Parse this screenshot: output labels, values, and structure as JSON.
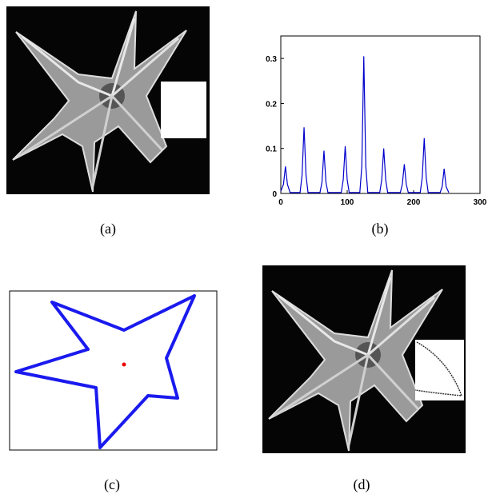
{
  "captions": [
    "(a)",
    "(b)",
    "(c)",
    "(d)"
  ],
  "chart_data": {
    "type": "line",
    "x": [
      0,
      4,
      7,
      10,
      14,
      29,
      32,
      35,
      38,
      41,
      59,
      62,
      65,
      68,
      71,
      91,
      94,
      97,
      100,
      103,
      119,
      122,
      125,
      128,
      131,
      149,
      152,
      155,
      158,
      161,
      180,
      183,
      186,
      189,
      192,
      210,
      213,
      216,
      219,
      222,
      240,
      243,
      246,
      249,
      253
    ],
    "series": [
      {
        "color": "#0000cc",
        "values": [
          0.005,
          0.02,
          0.06,
          0.02,
          0.002,
          0.002,
          0.04,
          0.147,
          0.04,
          0.002,
          0.002,
          0.025,
          0.095,
          0.025,
          0.002,
          0.002,
          0.03,
          0.105,
          0.03,
          0.002,
          0.002,
          0.06,
          0.305,
          0.06,
          0.002,
          0.002,
          0.03,
          0.1,
          0.03,
          0.002,
          0.002,
          0.02,
          0.065,
          0.02,
          0.002,
          0.002,
          0.035,
          0.123,
          0.035,
          0.002,
          0.002,
          0.015,
          0.055,
          0.015,
          0.002
        ]
      }
    ],
    "xlim": [
      0,
      300
    ],
    "ylim": [
      0,
      0.35
    ],
    "xticks": [
      0,
      100,
      200,
      300
    ],
    "yticks": [
      0,
      0.1,
      0.2,
      0.3
    ]
  }
}
